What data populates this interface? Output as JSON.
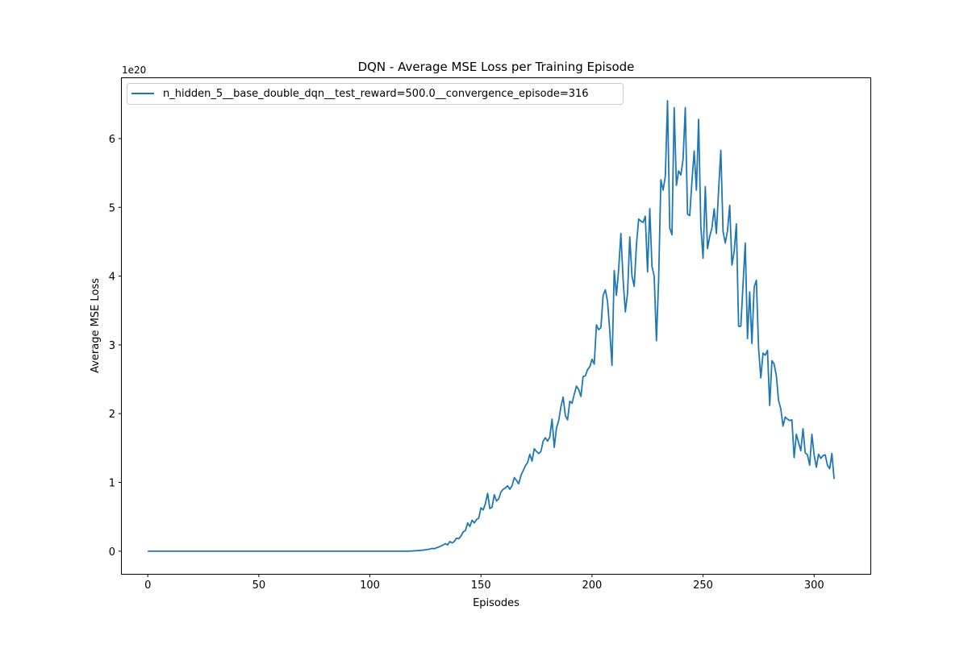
{
  "chart_data": {
    "type": "line",
    "title": "DQN - Average MSE Loss per Training Episode",
    "xlabel": "Episodes",
    "ylabel": "Average MSE Loss",
    "y_offset_label": "1e20",
    "xlim": [
      -11.7,
      325.7
    ],
    "ylim": [
      -0.33,
      6.89
    ],
    "x_ticks": [
      0,
      50,
      100,
      150,
      200,
      250,
      300
    ],
    "y_ticks": [
      0,
      1,
      2,
      3,
      4,
      5,
      6
    ],
    "grid": false,
    "legend": "upper-left",
    "series": [
      {
        "name": "n_hidden_5__base_double_dqn__test_reward=500.0__convergence_episode=316",
        "color": "#1f77b4",
        "x_start": 0,
        "x_step": 1,
        "values": [
          0,
          0,
          0,
          0,
          0,
          0,
          0,
          0,
          0,
          0,
          0,
          0,
          0,
          0,
          0,
          0,
          0,
          0,
          0,
          0,
          0,
          0,
          0,
          0,
          0,
          0,
          0,
          0,
          0,
          0,
          0,
          0,
          0,
          0,
          0,
          0,
          0,
          0,
          0,
          0,
          0,
          0,
          0,
          0,
          0,
          0,
          0,
          0,
          0,
          0,
          0,
          0,
          0,
          0,
          0,
          0,
          0,
          0,
          0,
          0,
          0,
          0,
          0,
          0,
          0,
          0,
          0,
          0,
          0,
          0,
          0,
          0,
          0,
          0,
          0,
          0,
          0,
          0,
          0,
          0,
          0,
          0,
          0,
          0,
          0,
          0,
          0,
          0,
          0,
          0,
          0,
          0,
          0,
          0,
          0,
          0,
          0,
          0,
          0,
          0,
          0,
          0,
          0,
          0,
          0,
          0,
          0,
          0,
          0,
          0,
          0,
          0,
          0,
          0,
          0,
          0,
          0,
          0,
          0.002,
          0.003,
          0.005,
          0.007,
          0.009,
          0.012,
          0.015,
          0.02,
          0.025,
          0.03,
          0.04,
          0.035,
          0.05,
          0.06,
          0.075,
          0.09,
          0.11,
          0.09,
          0.14,
          0.12,
          0.14,
          0.19,
          0.18,
          0.22,
          0.28,
          0.3,
          0.41,
          0.36,
          0.45,
          0.41,
          0.46,
          0.48,
          0.63,
          0.6,
          0.69,
          0.84,
          0.62,
          0.64,
          0.82,
          0.73,
          0.76,
          0.86,
          0.9,
          0.92,
          0.95,
          0.9,
          0.95,
          1.07,
          1.03,
          0.98,
          1.1,
          1.17,
          1.24,
          1.29,
          1.41,
          1.31,
          1.49,
          1.45,
          1.42,
          1.45,
          1.6,
          1.65,
          1.6,
          1.66,
          1.92,
          1.51,
          1.79,
          1.9,
          2.1,
          2.24,
          1.97,
          1.91,
          2.18,
          2.15,
          2.28,
          2.4,
          2.35,
          2.25,
          2.54,
          2.55,
          2.64,
          2.68,
          2.79,
          2.72,
          3.29,
          3.22,
          3.25,
          3.72,
          3.8,
          3.63,
          3.2,
          2.7,
          4.08,
          3.72,
          4.1,
          4.62,
          3.95,
          3.48,
          3.75,
          4.57,
          4.0,
          3.85,
          4.45,
          4.83,
          4.8,
          4.78,
          4.87,
          4.06,
          4.98,
          4.14,
          4.0,
          3.06,
          3.95,
          5.4,
          5.25,
          5.45,
          6.55,
          4.7,
          4.6,
          6.45,
          5.32,
          5.53,
          5.47,
          5.7,
          6.45,
          4.9,
          4.88,
          5.38,
          5.82,
          5.25,
          6.28,
          4.72,
          4.26,
          5.3,
          4.4,
          4.58,
          4.7,
          4.98,
          4.62,
          5.25,
          5.83,
          4.65,
          4.48,
          4.66,
          5.03,
          4.16,
          4.36,
          4.76,
          3.27,
          3.27,
          3.88,
          4.48,
          3.09,
          3.77,
          3.02,
          3.84,
          3.94,
          2.95,
          2.52,
          2.88,
          2.85,
          2.92,
          2.12,
          2.77,
          2.72,
          2.55,
          2.19,
          2.07,
          1.82,
          1.95,
          1.92,
          1.9,
          1.91,
          1.36,
          1.7,
          1.58,
          1.46,
          1.78,
          1.43,
          1.4,
          1.25,
          1.7,
          1.4,
          1.22,
          1.41,
          1.35,
          1.39,
          1.4,
          1.25,
          1.2,
          1.42,
          1.05
        ]
      }
    ]
  }
}
